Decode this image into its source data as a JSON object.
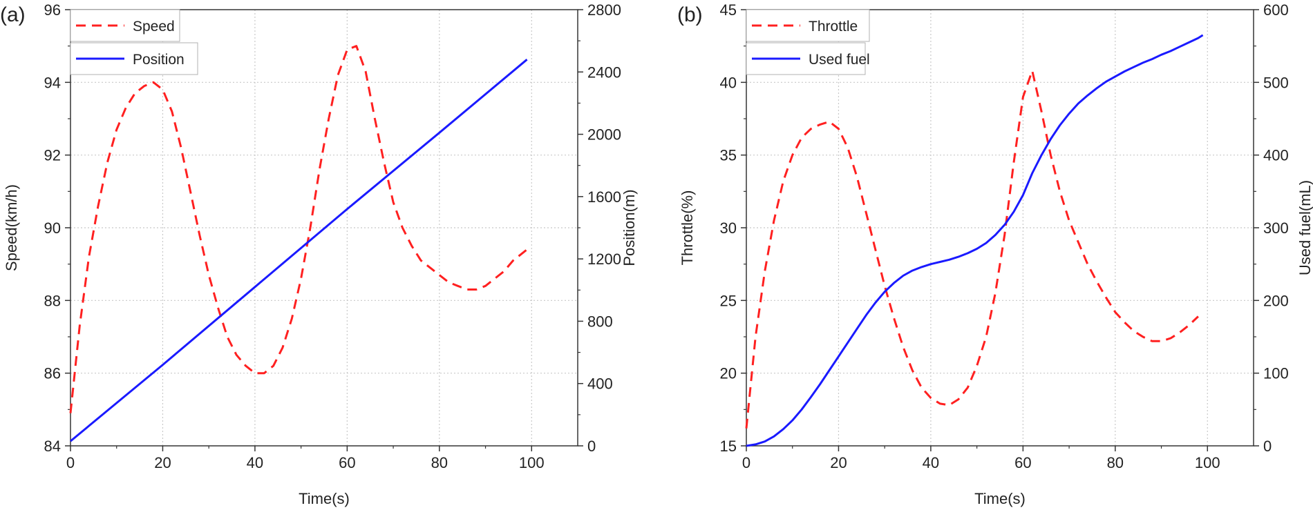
{
  "chart_data": [
    {
      "panel_label": "(a)",
      "type": "line",
      "xlabel": "Time(s)",
      "ylabel_left": "Speed(km/h)",
      "ylabel_right": "Position(m)",
      "xlim": [
        0,
        110
      ],
      "xticks": [
        0,
        20,
        40,
        60,
        80,
        100
      ],
      "ylim_left": [
        84,
        96
      ],
      "yticks_left": [
        84,
        86,
        88,
        90,
        92,
        94,
        96
      ],
      "ylim_right": [
        0,
        2800
      ],
      "yticks_right": [
        0,
        400,
        800,
        1200,
        1600,
        2000,
        2400,
        2800
      ],
      "grid": true,
      "legend_position": "top-left",
      "series": [
        {
          "name": "Speed",
          "axis": "left",
          "style": "dashed",
          "color": "#ff2020",
          "x": [
            0,
            2,
            4,
            6,
            8,
            10,
            12,
            14,
            16,
            18,
            20,
            22,
            24,
            26,
            28,
            30,
            32,
            34,
            36,
            38,
            40,
            42,
            44,
            46,
            48,
            50,
            52,
            54,
            56,
            58,
            60,
            62,
            64,
            66,
            68,
            70,
            72,
            74,
            76,
            78,
            80,
            82,
            84,
            86,
            88,
            90,
            92,
            94,
            96,
            99
          ],
          "y": [
            84.9,
            87.3,
            89.2,
            90.6,
            91.8,
            92.7,
            93.3,
            93.7,
            93.9,
            94.0,
            93.8,
            93.2,
            92.2,
            91.0,
            89.8,
            88.7,
            87.8,
            87.0,
            86.5,
            86.2,
            86.0,
            86.0,
            86.2,
            86.7,
            87.5,
            88.6,
            90.0,
            91.6,
            93.0,
            94.2,
            94.9,
            95.0,
            94.3,
            93.0,
            91.8,
            90.7,
            90.0,
            89.5,
            89.1,
            88.9,
            88.7,
            88.5,
            88.4,
            88.3,
            88.3,
            88.4,
            88.6,
            88.8,
            89.1,
            89.4
          ]
        },
        {
          "name": "Position",
          "axis": "right",
          "style": "solid",
          "color": "#1a1aff",
          "x": [
            0,
            20,
            40,
            60,
            80,
            99
          ],
          "y": [
            30,
            520,
            1020,
            1520,
            2010,
            2480
          ]
        }
      ]
    },
    {
      "panel_label": "(b)",
      "type": "line",
      "xlabel": "Time(s)",
      "ylabel_left": "Throttle(%)",
      "ylabel_right": "Used fuel(mL)",
      "xlim": [
        0,
        110
      ],
      "xticks": [
        0,
        20,
        40,
        60,
        80,
        100
      ],
      "ylim_left": [
        15,
        45
      ],
      "yticks_left": [
        15,
        20,
        25,
        30,
        35,
        40,
        45
      ],
      "ylim_right": [
        0,
        600
      ],
      "yticks_right": [
        0,
        100,
        200,
        300,
        400,
        500,
        600
      ],
      "grid": true,
      "legend_position": "top-left",
      "series": [
        {
          "name": "Throttle",
          "axis": "left",
          "style": "dashed",
          "color": "#ff2020",
          "x": [
            0,
            2,
            4,
            6,
            8,
            10,
            12,
            14,
            16,
            18,
            20,
            22,
            24,
            26,
            28,
            30,
            32,
            34,
            36,
            38,
            40,
            42,
            44,
            46,
            48,
            50,
            52,
            54,
            56,
            58,
            60,
            62,
            64,
            66,
            68,
            70,
            72,
            74,
            76,
            78,
            80,
            82,
            84,
            86,
            88,
            90,
            92,
            94,
            96,
            98
          ],
          "y": [
            16.2,
            22.5,
            27.0,
            30.5,
            33.2,
            35.0,
            36.2,
            36.8,
            37.1,
            37.3,
            36.8,
            35.5,
            33.5,
            31.0,
            28.5,
            26.0,
            23.8,
            21.8,
            20.2,
            19.0,
            18.3,
            17.9,
            17.8,
            18.2,
            19.0,
            20.5,
            22.5,
            25.5,
            29.5,
            34.5,
            39.0,
            40.8,
            38.0,
            35.0,
            32.5,
            30.5,
            29.0,
            27.5,
            26.3,
            25.2,
            24.2,
            23.5,
            22.9,
            22.5,
            22.2,
            22.2,
            22.4,
            22.8,
            23.3,
            23.9
          ]
        },
        {
          "name": "Used fuel",
          "axis": "right",
          "style": "solid",
          "color": "#1a1aff",
          "x": [
            0,
            2,
            4,
            6,
            8,
            10,
            12,
            14,
            16,
            18,
            20,
            22,
            24,
            26,
            28,
            30,
            32,
            34,
            36,
            38,
            40,
            42,
            44,
            46,
            48,
            50,
            52,
            54,
            56,
            58,
            60,
            62,
            64,
            66,
            68,
            70,
            72,
            74,
            76,
            78,
            80,
            82,
            84,
            86,
            88,
            90,
            92,
            94,
            96,
            98,
            99
          ],
          "y": [
            0,
            2,
            6,
            13,
            23,
            35,
            50,
            67,
            85,
            104,
            123,
            142,
            161,
            180,
            197,
            212,
            224,
            234,
            241,
            246,
            250,
            253,
            256,
            260,
            265,
            271,
            279,
            290,
            304,
            322,
            345,
            375,
            400,
            422,
            441,
            457,
            471,
            482,
            492,
            501,
            508,
            515,
            521,
            527,
            532,
            538,
            543,
            549,
            555,
            561,
            565
          ]
        }
      ]
    }
  ]
}
